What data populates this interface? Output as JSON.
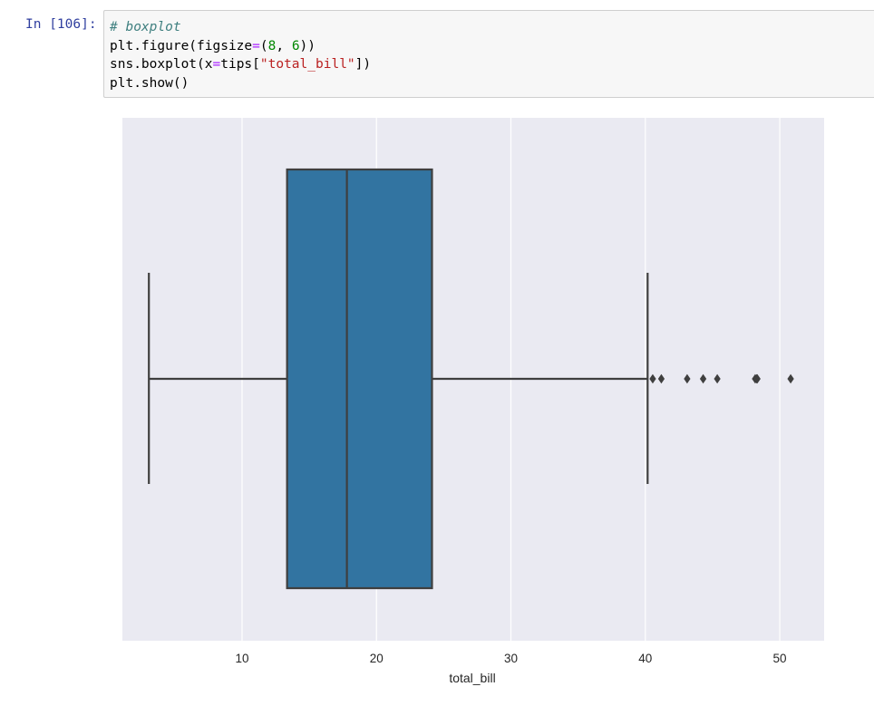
{
  "cell": {
    "prompt": "In [106]:",
    "code_lines": [
      [
        {
          "t": "# boxplot",
          "c": "tok-comment"
        }
      ],
      [
        {
          "t": "plt.figure(figsize"
        },
        {
          "t": "=",
          "c": "tok-op"
        },
        {
          "t": "("
        },
        {
          "t": "8",
          "c": "tok-num"
        },
        {
          "t": ", "
        },
        {
          "t": "6",
          "c": "tok-num"
        },
        {
          "t": "))"
        }
      ],
      [
        {
          "t": "sns.boxplot(x"
        },
        {
          "t": "=",
          "c": "tok-op"
        },
        {
          "t": "tips["
        },
        {
          "t": "\"total_bill\"",
          "c": "tok-str"
        },
        {
          "t": "])"
        }
      ],
      [
        {
          "t": "plt.show()"
        }
      ]
    ]
  },
  "chart_data": {
    "type": "boxplot",
    "title": "",
    "xlabel": "total_bill",
    "ylabel": "",
    "xlim": [
      1.1,
      53.3
    ],
    "xticks": [
      10,
      20,
      30,
      40,
      50
    ],
    "xtick_labels": [
      "10",
      "20",
      "30",
      "40",
      "50"
    ],
    "grid": true,
    "style": "seaborn-darkgrid",
    "box": {
      "whisker_low": 3.07,
      "q1": 13.35,
      "median": 17.8,
      "q3": 24.13,
      "whisker_high": 40.17
    },
    "outliers": [
      40.55,
      41.19,
      43.11,
      44.3,
      45.35,
      48.17,
      48.27,
      48.33,
      50.81
    ],
    "colors": {
      "box_fill": "#3274a1",
      "line": "#3f3f3f",
      "background": "#eaeaf2",
      "grid": "#ffffff",
      "tick_text": "#262626"
    }
  }
}
